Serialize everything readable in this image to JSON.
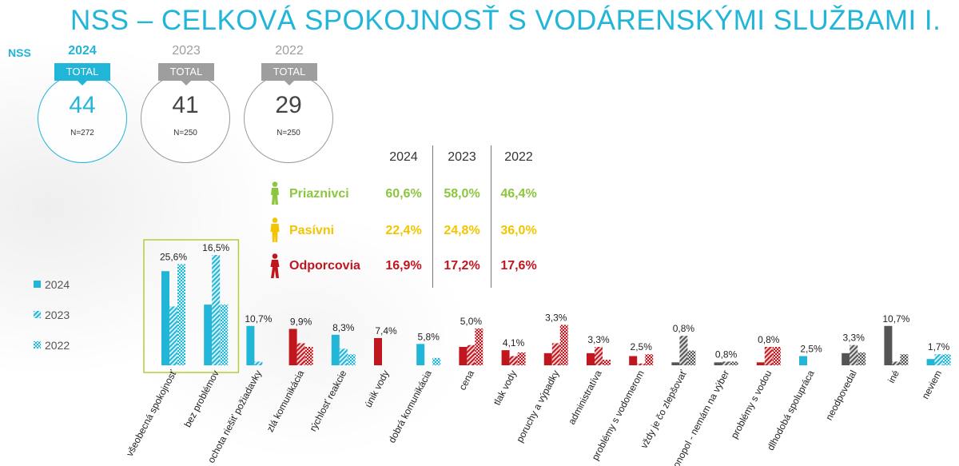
{
  "title": "NSS – CELKOVÁ SPOKOJNOSŤ S VODÁRENSKÝMI SLUŽBAMI I.",
  "nss_label": "NSS",
  "nss_cards": [
    {
      "year": "2024",
      "label": "TOTAL",
      "value": "44",
      "n": "N=272",
      "color": "#21b5d8"
    },
    {
      "year": "2023",
      "label": "TOTAL",
      "value": "41",
      "n": "N=250",
      "color": "#9e9e9e"
    },
    {
      "year": "2022",
      "label": "TOTAL",
      "value": "29",
      "n": "N=250",
      "color": "#9e9e9e"
    }
  ],
  "segments_table": {
    "years": [
      "2024",
      "2023",
      "2022"
    ],
    "rows": [
      {
        "label": "Priaznivci",
        "values": [
          "60,6%",
          "58,0%",
          "46,4%"
        ],
        "color": "#8cc63f",
        "icon": "walking-person-icon"
      },
      {
        "label": "Pasívni",
        "values": [
          "22,4%",
          "24,8%",
          "36,0%"
        ],
        "color": "#f2c500",
        "icon": "standing-person-icon"
      },
      {
        "label": "Odporcovia",
        "values": [
          "16,9%",
          "17,2%",
          "17,6%"
        ],
        "color": "#c0161e",
        "icon": "walking-person-icon"
      }
    ]
  },
  "legend": [
    "2024",
    "2023",
    "2022"
  ],
  "chart_data": {
    "type": "bar",
    "categories": [
      "všeobecná spokojnosť",
      "bez problémov",
      "ochota riešiť požiadavky",
      "zlá komunikácia",
      "rýchlosť reakcie",
      "únik vody",
      "dobrá komunikácia",
      "cena",
      "tlak vody",
      "poruchy a výpadky",
      "administratíva",
      "problémy s vodomerom",
      "vždy je čo zlepšovať",
      "monopol - nemám na výber",
      "problémy s vodou",
      "dlhodobá spolupráca",
      "neodpovedal",
      "iné",
      "neviem"
    ],
    "category_groups": [
      "positive",
      "positive",
      "positive",
      "negative",
      "positive",
      "negative",
      "positive",
      "negative",
      "negative",
      "negative",
      "negative",
      "negative",
      "neutral",
      "neutral",
      "negative",
      "positive",
      "neutral",
      "neutral",
      "positive"
    ],
    "group_colors": {
      "positive": "#21b5d8",
      "negative": "#c0161e",
      "neutral": "#555555"
    },
    "series": [
      {
        "name": "2024",
        "values": [
          25.6,
          16.5,
          10.7,
          9.9,
          8.3,
          7.4,
          5.8,
          5.0,
          4.1,
          3.3,
          3.3,
          2.5,
          0.8,
          0.8,
          0.8,
          2.5,
          3.3,
          10.7,
          1.7
        ]
      },
      {
        "name": "2023",
        "values": [
          16.0,
          30.0,
          1.0,
          6.0,
          4.5,
          0.0,
          0.0,
          5.5,
          2.5,
          6.0,
          5.0,
          0.5,
          8.0,
          1.0,
          5.0,
          0.0,
          5.5,
          1.0,
          3.0
        ]
      },
      {
        "name": "2022",
        "values": [
          27.5,
          16.5,
          0.0,
          5.0,
          3.0,
          0.0,
          2.0,
          10.0,
          3.5,
          11.0,
          1.5,
          3.0,
          4.0,
          1.0,
          5.0,
          0.0,
          3.5,
          3.0,
          3.0
        ]
      }
    ],
    "labels_2024": [
      "25,6%",
      "16,5%",
      "10,7%",
      "9,9%",
      "8,3%",
      "7,4%",
      "5,8%",
      "5,0%",
      "4,1%",
      "3,3%",
      "3,3%",
      "2,5%",
      "0,8%",
      "0,8%",
      "0,8%",
      "2,5%",
      "3,3%",
      "10,7%",
      "1,7%"
    ],
    "highlighted_categories": [
      "všeobecná spokojnosť",
      "bez problémov"
    ],
    "highlight_color": "#b5cc3a",
    "ylim": [
      0,
      35
    ],
    "legend_position": "left",
    "grid": false
  }
}
